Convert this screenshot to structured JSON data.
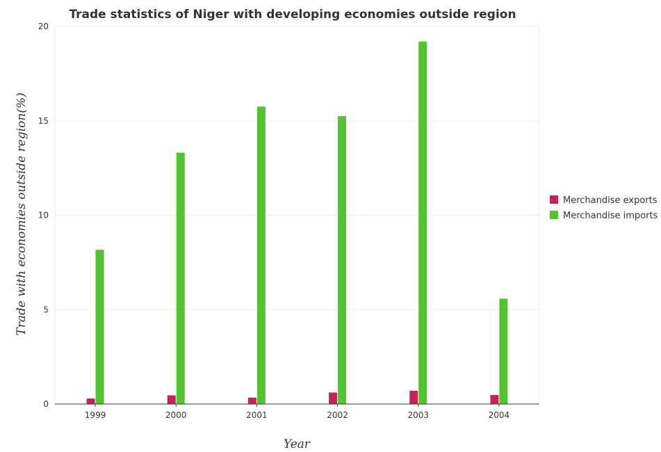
{
  "chart_data": {
    "type": "bar",
    "title": "Trade statistics of Niger with developing economies outside region",
    "xlabel": "Year",
    "ylabel": "Trade with economies outside region(%)",
    "categories": [
      "1999",
      "2000",
      "2001",
      "2002",
      "2003",
      "2004"
    ],
    "ylim": [
      0,
      20
    ],
    "yticks": [
      0,
      5,
      10,
      15,
      20
    ],
    "grid": true,
    "legend_position": "right",
    "series": [
      {
        "name": "Merchandise exports",
        "color": "#c0245e",
        "values": [
          0.29,
          0.46,
          0.34,
          0.61,
          0.7,
          0.48
        ]
      },
      {
        "name": "Merchandise imports",
        "color": "#55c233",
        "values": [
          8.17,
          13.31,
          15.75,
          15.25,
          19.2,
          5.58
        ]
      }
    ]
  }
}
